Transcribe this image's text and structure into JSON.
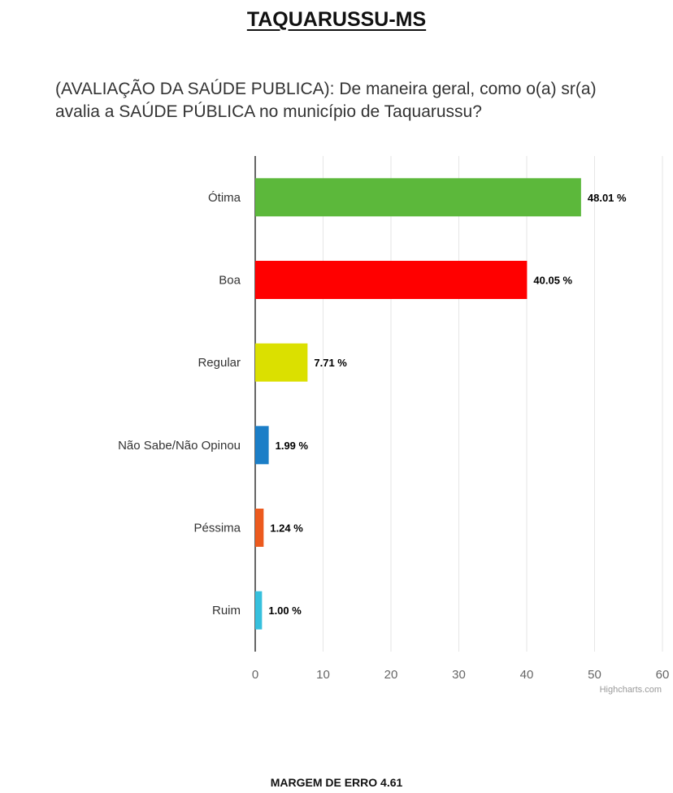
{
  "page": {
    "heading": "TAQUARUSSU-MS",
    "footer": "MARGEM DE ERRO 4.61"
  },
  "credit": "Highcharts.com",
  "chart_data": {
    "type": "bar",
    "orientation": "horizontal",
    "title": "(AVALIAÇÃO DA SAÚDE PUBLICA): De maneira geral, como o(a) sr(a) avalia a SAÚDE PÚBLICA no município de Taquarussu?",
    "categories": [
      "Ótima",
      "Boa",
      "Regular",
      "Não Sabe/Não Opinou",
      "Péssima",
      "Ruim"
    ],
    "values": [
      48.01,
      40.05,
      7.71,
      1.99,
      1.24,
      1.0
    ],
    "data_labels": [
      "48.01 %",
      "40.05 %",
      "7.71 %",
      "1.99 %",
      "1.24 %",
      "1.00 %"
    ],
    "colors": [
      "#5cb83b",
      "#ff0000",
      "#dbe000",
      "#1b7ec7",
      "#ec5a1e",
      "#36c0dd"
    ],
    "xlim": [
      0,
      60
    ],
    "ticks": [
      0,
      10,
      20,
      30,
      40,
      50,
      60
    ],
    "grid": true,
    "legend": "none"
  }
}
